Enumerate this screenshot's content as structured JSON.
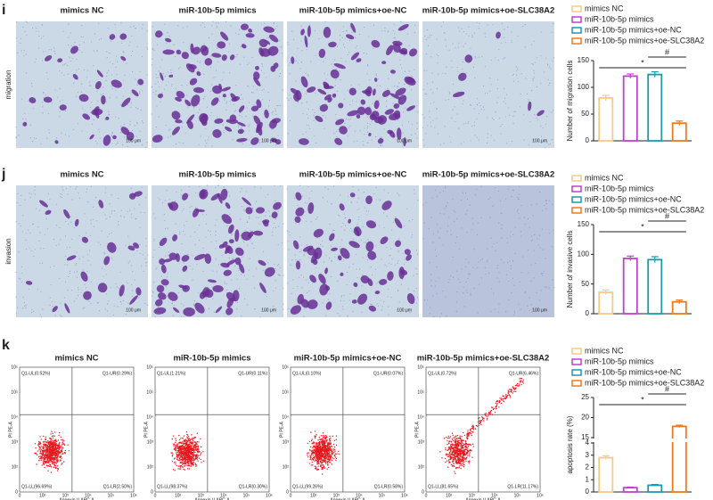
{
  "panels": [
    {
      "label": "i",
      "row_label": "migration",
      "image_titles": [
        "mimics NC",
        "miR-10b-5p mimics",
        "miR-10b-5p mimics+oe-NC",
        "miR-10b-5p mimics+oe-SLC38A2"
      ],
      "scale_bar": "100 μm"
    },
    {
      "label": "j",
      "row_label": "invasion",
      "image_titles": [
        "mimics NC",
        "miR-10b-5p mimics",
        "miR-10b-5p mimics+oe-NC",
        "miR-10b-5p mimics+oe-SLC38A2"
      ],
      "scale_bar": "100 μm"
    },
    {
      "label": "k",
      "plot_titles": [
        "mimics NC",
        "miR-10b-5p mimics",
        "miR-10b-5p mimics+oe-NC",
        "miR-10b-5p mimics+oe-SLC38A2"
      ],
      "x_label": "Annexin V APC-A",
      "y_label": "PI PE-A",
      "xticks": [
        "0",
        "10²",
        "10³",
        "10⁴",
        "10⁵",
        "10⁶"
      ],
      "yticks": [
        "10⁶",
        "10⁵",
        "10⁴",
        "10³",
        "10²",
        "0"
      ],
      "quadrants": [
        [
          "Q1-UL(0.52%)",
          "Q1-UR(0.29%)",
          "Q1-LL(96.69%)",
          "Q1-LR(2.50%)"
        ],
        [
          "Q1-UL(1.21%)",
          "Q1-UR(0.11%)",
          "Q1-LL(98.37%)",
          "Q1-LR(0.30%)"
        ],
        [
          "Q1-UL(0.10%)",
          "Q1-UR(0.07%)",
          "Q1-LL(99.26%)",
          "Q1-LR(0.58%)"
        ],
        [
          "Q1-UL(0.72%)",
          "Q1-UR(6.46%)",
          "Q1-LL(81.65%)",
          "Q1-LR(11.17%)"
        ]
      ]
    }
  ],
  "chart_data": [
    {
      "type": "bar",
      "ylabel": "Number of migration cells",
      "categories": [
        "mimics NC",
        "miR-10b-5p mimics",
        "miR-10b-5p mimics+oe-NC",
        "miR-10b-5p mimics+oe-SLC38A2"
      ],
      "colors": [
        "#f5c98a",
        "#c23fd1",
        "#1a9ab0",
        "#f07a1a"
      ],
      "values": [
        80,
        121,
        124,
        33
      ],
      "errors": [
        5,
        4,
        5,
        4
      ],
      "ylim": [
        0,
        150
      ],
      "yticks": [
        0,
        50,
        100,
        150
      ],
      "annotations": [
        "*",
        "#"
      ]
    },
    {
      "type": "bar",
      "ylabel": "Number of invasive cells",
      "categories": [
        "mimics NC",
        "miR-10b-5p mimics",
        "miR-10b-5p mimics+oe-NC",
        "miR-10b-5p mimics+oe-SLC38A2"
      ],
      "colors": [
        "#f5c98a",
        "#c23fd1",
        "#1a9ab0",
        "#f07a1a"
      ],
      "values": [
        36,
        93,
        91,
        20
      ],
      "errors": [
        4,
        4,
        5,
        3
      ],
      "ylim": [
        0,
        150
      ],
      "yticks": [
        0,
        50,
        100,
        150
      ],
      "annotations": [
        "*",
        "#"
      ]
    },
    {
      "type": "bar",
      "ylabel": "apoptosis rate (%)",
      "categories": [
        "mimics NC",
        "miR-10b-5p mimics",
        "miR-10b-5p mimics+oe-NC",
        "miR-10b-5p mimics+oe-SLC38A2"
      ],
      "colors": [
        "#f5c98a",
        "#c23fd1",
        "#1a9ab0",
        "#f07a1a"
      ],
      "values": [
        2.8,
        0.35,
        0.55,
        17.8
      ],
      "errors": [
        0.15,
        0.05,
        0.06,
        0.3
      ],
      "ylim": [
        0,
        25
      ],
      "yticks": [
        0,
        1,
        2,
        3,
        4,
        15,
        20,
        25
      ],
      "axis_break": [
        4,
        15
      ],
      "annotations": [
        "*",
        "#"
      ]
    }
  ]
}
